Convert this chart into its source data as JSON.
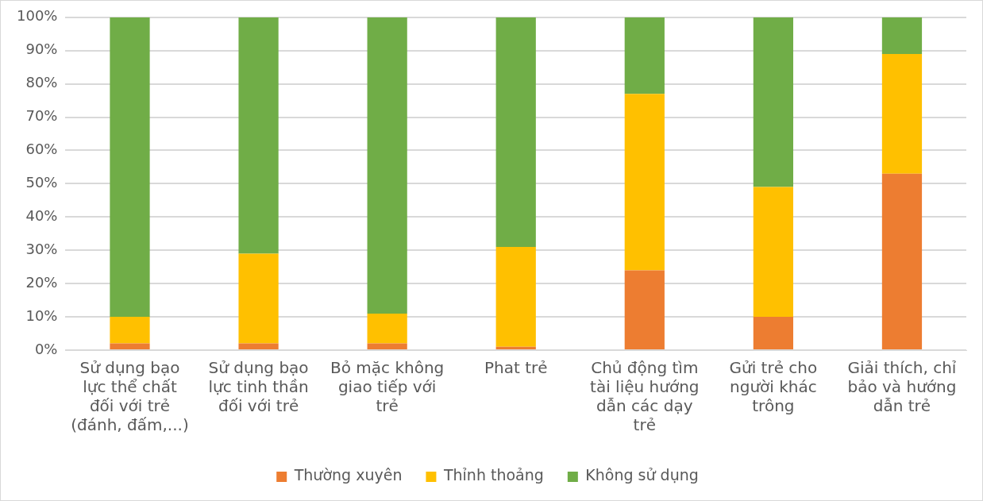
{
  "chart_data": {
    "type": "bar",
    "stacked": true,
    "categories": [
      "Sử dụng bạo lực thể chất đối với trẻ (đánh, đấm,...)",
      "Sử dụng bạo lực tinh thần đối với trẻ",
      "Bỏ mặc không giao tiếp với trẻ",
      "Phat trẻ",
      "Chủ động tìm tài liệu hướng dẫn các dạy trẻ",
      "Gửi trẻ cho người khác trông",
      "Giải thích, chỉ bảo và hướng dẫn trẻ"
    ],
    "series": [
      {
        "name": "Thường xuyên",
        "color": "#ed7d31",
        "values": [
          2,
          2,
          2,
          1,
          24,
          10,
          53
        ]
      },
      {
        "name": "Thỉnh thoảng",
        "color": "#ffc000",
        "values": [
          8,
          27,
          9,
          30,
          53,
          39,
          36
        ]
      },
      {
        "name": "Không sử dụng",
        "color": "#70ad47",
        "values": [
          90,
          71,
          89,
          69,
          23,
          51,
          11
        ]
      }
    ],
    "ylim": [
      0,
      100
    ],
    "yticks": [
      {
        "value": 0,
        "label": "0%"
      },
      {
        "value": 10,
        "label": "10%"
      },
      {
        "value": 20,
        "label": "20%"
      },
      {
        "value": 30,
        "label": "30%"
      },
      {
        "value": 40,
        "label": "40%"
      },
      {
        "value": 50,
        "label": "50%"
      },
      {
        "value": 60,
        "label": "60%"
      },
      {
        "value": 70,
        "label": "70%"
      },
      {
        "value": 80,
        "label": "80%"
      },
      {
        "value": 90,
        "label": "90%"
      },
      {
        "value": 100,
        "label": "100%"
      }
    ],
    "grid": "y",
    "legend": "bottom"
  }
}
